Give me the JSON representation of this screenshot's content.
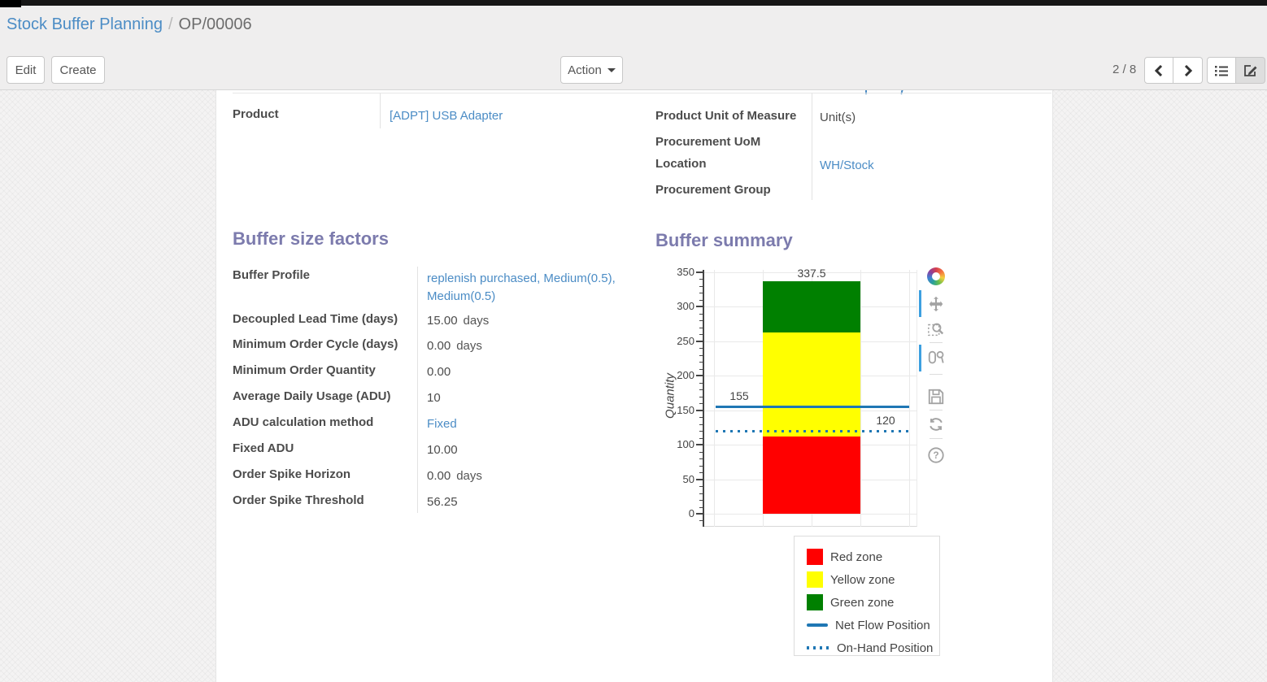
{
  "breadcrumb": {
    "parent": "Stock Buffer Planning",
    "separator": "/",
    "current": "OP/00006"
  },
  "toolbar": {
    "edit": "Edit",
    "create": "Create",
    "action": "Action",
    "pager": "2 / 8"
  },
  "form": {
    "product": {
      "label": "Product",
      "value": "[ADPT] USB Adapter"
    },
    "right_fields": [
      {
        "label": "Product Unit of Measure",
        "value": "Unit(s)"
      },
      {
        "label": "Procurement UoM",
        "value": ""
      },
      {
        "label": "Location",
        "value": "WH/Stock"
      },
      {
        "label": "Procurement Group",
        "value": ""
      }
    ],
    "buffer_factors": {
      "title": "Buffer size factors",
      "fields": [
        {
          "label": "Buffer Profile",
          "value": "replenish purchased, Medium(0.5), Medium(0.5)",
          "suffix": ""
        },
        {
          "label": "Decoupled Lead Time (days)",
          "value": "15.00",
          "suffix": "days"
        },
        {
          "label": "Minimum Order Cycle (days)",
          "value": "0.00",
          "suffix": "days"
        },
        {
          "label": "Minimum Order Quantity",
          "value": "0.00",
          "suffix": ""
        },
        {
          "label": "Average Daily Usage (ADU)",
          "value": "10",
          "suffix": ""
        },
        {
          "label": "ADU calculation method",
          "value": "Fixed",
          "suffix": ""
        },
        {
          "label": "Fixed ADU",
          "value": "10.00",
          "suffix": ""
        },
        {
          "label": "Order Spike Horizon",
          "value": "0.00",
          "suffix": "days"
        },
        {
          "label": "Order Spike Threshold",
          "value": "56.25",
          "suffix": ""
        }
      ]
    },
    "buffer_summary_title": "Buffer summary"
  },
  "chart_data": {
    "type": "bar",
    "title": "Buffer summary",
    "ylabel": "Quantity",
    "ylim": [
      0,
      350
    ],
    "yticks": [
      0,
      50,
      100,
      150,
      200,
      250,
      300,
      350
    ],
    "grid": true,
    "legend_position": "bottom-outside",
    "zones": [
      {
        "name": "Red zone",
        "color": "#ff0000",
        "from": 0,
        "to": 112.5,
        "label": "112.5"
      },
      {
        "name": "Yellow zone",
        "color": "#ffff00",
        "from": 112.5,
        "to": 262.5,
        "label": "262.5"
      },
      {
        "name": "Green zone",
        "color": "#008000",
        "from": 262.5,
        "to": 337.5,
        "label": "337.5"
      }
    ],
    "lines": [
      {
        "name": "Net Flow Position",
        "value": 155,
        "label": "155",
        "style": "solid",
        "color": "#1f77b4"
      },
      {
        "name": "On-Hand Position",
        "value": 120,
        "label": "120",
        "style": "dotted",
        "color": "#1f77b4"
      }
    ]
  },
  "colors": {
    "accent": "#7c7bad",
    "link": "#4b8cc5",
    "plot_line": "#1f77b4"
  }
}
